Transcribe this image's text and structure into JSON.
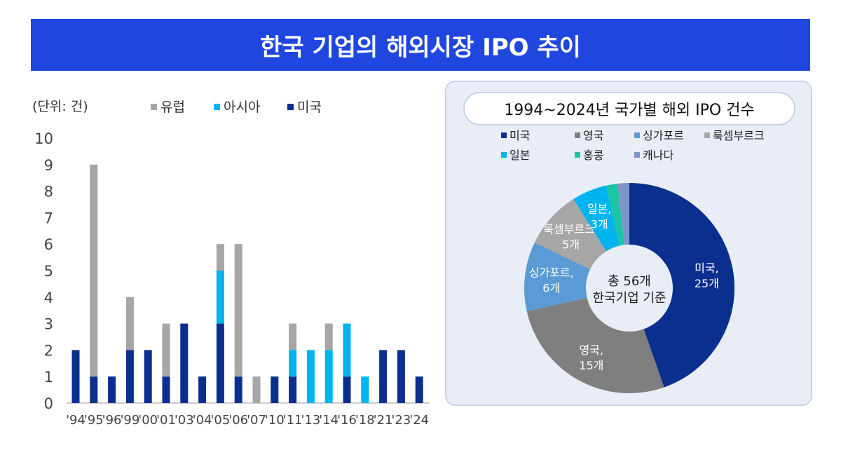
{
  "title": "한국 기업의 해외시장 IPO 추이",
  "chart_data": [
    {
      "type": "bar",
      "stacked": true,
      "unit_label": "(단위: 건)",
      "categories": [
        "'94",
        "'95",
        "'96",
        "'99",
        "'00",
        "'01",
        "'03",
        "'04",
        "'05",
        "'06",
        "'07",
        "'10",
        "'11",
        "'13",
        "'14",
        "'16",
        "'18",
        "'21",
        "'23",
        "'24"
      ],
      "series": [
        {
          "name": "미국",
          "color": "#0b2f8f",
          "values": [
            2,
            1,
            1,
            2,
            2,
            1,
            3,
            1,
            3,
            1,
            0,
            1,
            1,
            0,
            0,
            1,
            0,
            2,
            2,
            1
          ]
        },
        {
          "name": "아시아",
          "color": "#00b4f0",
          "values": [
            0,
            0,
            0,
            0,
            0,
            0,
            0,
            0,
            2,
            0,
            0,
            0,
            1,
            2,
            2,
            2,
            1,
            0,
            0,
            0
          ]
        },
        {
          "name": "유럽",
          "color": "#a6a6a6",
          "values": [
            0,
            8,
            0,
            2,
            0,
            2,
            0,
            0,
            1,
            5,
            1,
            0,
            1,
            0,
            1,
            0,
            0,
            0,
            0,
            0
          ]
        }
      ],
      "legend_order": [
        "유럽",
        "아시아",
        "미국"
      ],
      "ylim": [
        0,
        10
      ],
      "yticks": [
        0,
        1,
        2,
        3,
        4,
        5,
        6,
        7,
        8,
        9,
        10
      ],
      "grid": false,
      "legend_position": "top"
    },
    {
      "type": "pie",
      "donut": true,
      "title": "1994~2024년 국가별 해외 IPO 건수",
      "center_label": [
        "총 56개",
        "한국기업 기준"
      ],
      "slices": [
        {
          "name": "미국",
          "value": 25,
          "label": [
            "미국,",
            "25개"
          ],
          "color": "#0b2f8f"
        },
        {
          "name": "영국",
          "value": 15,
          "label": [
            "영국,",
            "15개"
          ],
          "color": "#7f7f7f"
        },
        {
          "name": "싱가포르",
          "value": 6,
          "label": [
            "싱가포르,",
            "6개"
          ],
          "color": "#5b9bd5"
        },
        {
          "name": "룩셈부르크",
          "value": 5,
          "label": [
            "룩셈부르크,",
            "5개"
          ],
          "color": "#a6a6a6"
        },
        {
          "name": "일본",
          "value": 3,
          "label": [
            "일본,",
            "3개"
          ],
          "color": "#00b4f0"
        },
        {
          "name": "홍콩",
          "value": 1,
          "label": [],
          "color": "#1cc4a6"
        },
        {
          "name": "캐나다",
          "value": 1,
          "label": [],
          "color": "#8096c8"
        }
      ],
      "legend_position": "top"
    }
  ]
}
